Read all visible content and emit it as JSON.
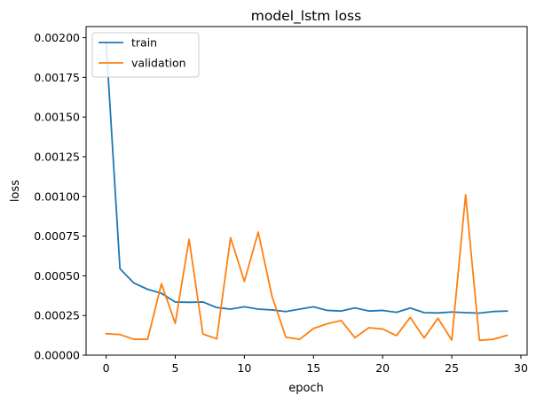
{
  "chart_data": {
    "type": "line",
    "title": "model_lstm loss",
    "xlabel": "epoch",
    "ylabel": "loss",
    "xlim": [
      -1.45,
      30.45
    ],
    "ylim": [
      0,
      0.00207
    ],
    "xticks": [
      0,
      5,
      10,
      15,
      20,
      25,
      30
    ],
    "yticks": [
      0,
      0.00025,
      0.0005,
      0.00075,
      0.001,
      0.00125,
      0.0015,
      0.00175,
      0.002
    ],
    "xtick_labels": [
      "0",
      "5",
      "10",
      "15",
      "20",
      "25",
      "30"
    ],
    "ytick_labels": [
      "0.00000",
      "0.00025",
      "0.00050",
      "0.00075",
      "0.00100",
      "0.00125",
      "0.00150",
      "0.00175",
      "0.00200"
    ],
    "grid": false,
    "legend_position": "upper-left",
    "x": [
      0,
      1,
      2,
      3,
      4,
      5,
      6,
      7,
      8,
      9,
      10,
      11,
      12,
      13,
      14,
      15,
      16,
      17,
      18,
      19,
      20,
      21,
      22,
      23,
      24,
      25,
      26,
      27,
      28,
      29
    ],
    "series": [
      {
        "name": "train",
        "color": "#1f77b4",
        "values": [
          0.00197,
          0.000545,
          0.000455,
          0.000415,
          0.00039,
          0.000335,
          0.000333,
          0.000335,
          0.0003,
          0.00029,
          0.000305,
          0.00029,
          0.000285,
          0.000275,
          0.00029,
          0.000305,
          0.000282,
          0.000278,
          0.000298,
          0.000278,
          0.000282,
          0.00027,
          0.000297,
          0.000268,
          0.000266,
          0.000272,
          0.000268,
          0.000265,
          0.000275,
          0.000278
        ]
      },
      {
        "name": "validation",
        "color": "#ff7f0e",
        "values": [
          0.000135,
          0.00013,
          0.0001,
          0.0001,
          0.00045,
          0.0002,
          0.00073,
          0.000133,
          0.000103,
          0.00074,
          0.000465,
          0.000775,
          0.00037,
          0.000113,
          0.0001,
          0.000168,
          0.000198,
          0.000218,
          0.00011,
          0.000173,
          0.000165,
          0.000123,
          0.000238,
          0.000108,
          0.000233,
          9.5e-05,
          0.00101,
          9.3e-05,
          0.0001,
          0.000125
        ]
      }
    ]
  }
}
